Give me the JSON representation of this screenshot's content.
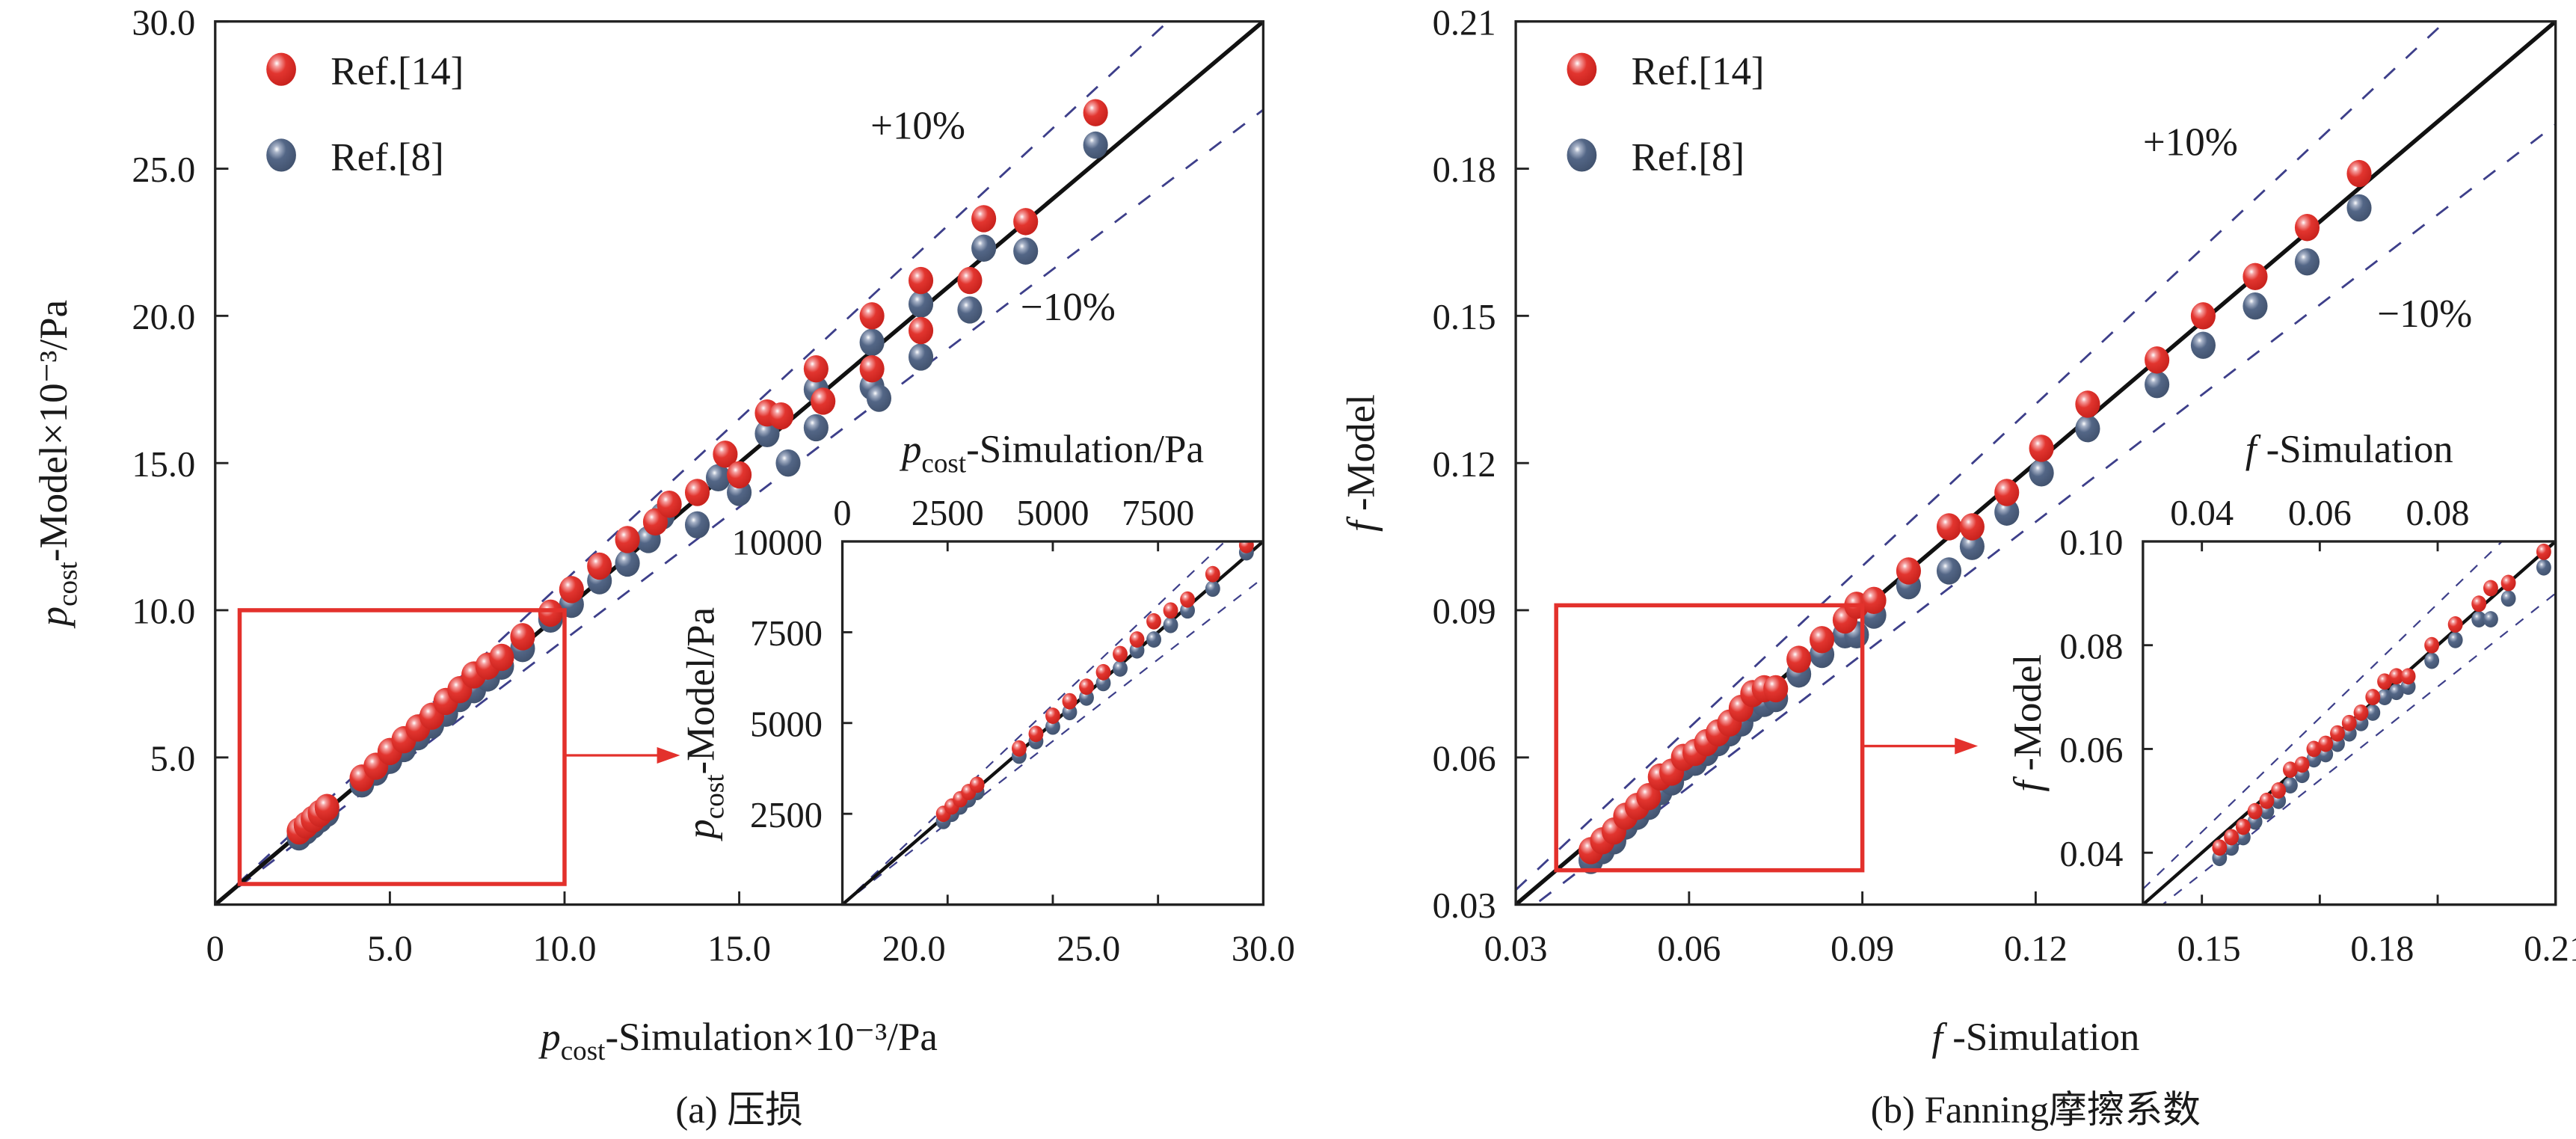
{
  "colors": {
    "ref14": "#d9302b",
    "ref8": "#4e6285",
    "diagonal": "#111111",
    "band": "#3d3f8a",
    "zoom_box": "#e3312c"
  },
  "chart_data": [
    {
      "type": "scatter",
      "caption": "(a) 压损",
      "xlabel": {
        "main": "p",
        "sub": "cost",
        "rest": "-Simulation×10⁻³/Pa"
      },
      "ylabel": {
        "main": "p",
        "sub": "cost",
        "rest": "-Model×10⁻³/Pa"
      },
      "xlim": [
        0,
        30
      ],
      "ylim": [
        0,
        30
      ],
      "xticks": [
        "0",
        "5.0",
        "10.0",
        "15.0",
        "20.0",
        "25.0",
        "30.0"
      ],
      "xtick_values": [
        0,
        5,
        10,
        15,
        20,
        25,
        30
      ],
      "yticks": [
        "5.0",
        "10.0",
        "15.0",
        "20.0",
        "25.0",
        "30.0"
      ],
      "ytick_values": [
        5,
        10,
        15,
        20,
        25,
        30
      ],
      "band_labels": {
        "plus": "+10%",
        "minus": "−10%"
      },
      "zoom_region": {
        "x": [
          0.7,
          10
        ],
        "y": [
          0.7,
          10
        ]
      },
      "series": [
        {
          "name": "Ref.[14]",
          "points": [
            [
              2.4,
              2.5
            ],
            [
              2.6,
              2.7
            ],
            [
              2.8,
              2.9
            ],
            [
              3.0,
              3.1
            ],
            [
              3.2,
              3.3
            ],
            [
              4.2,
              4.3
            ],
            [
              4.6,
              4.7
            ],
            [
              5.0,
              5.2
            ],
            [
              5.4,
              5.6
            ],
            [
              5.8,
              6.0
            ],
            [
              6.2,
              6.4
            ],
            [
              6.6,
              6.9
            ],
            [
              7.0,
              7.3
            ],
            [
              7.4,
              7.8
            ],
            [
              7.8,
              8.1
            ],
            [
              8.2,
              8.4
            ],
            [
              8.8,
              9.1
            ],
            [
              9.6,
              9.9
            ],
            [
              10.2,
              10.7
            ],
            [
              11.0,
              11.5
            ],
            [
              11.8,
              12.4
            ],
            [
              12.6,
              13.0
            ],
            [
              13.0,
              13.6
            ],
            [
              13.8,
              14.0
            ],
            [
              14.6,
              15.3
            ],
            [
              15.0,
              14.6
            ],
            [
              15.8,
              16.7
            ],
            [
              16.2,
              16.6
            ],
            [
              17.2,
              18.2
            ],
            [
              17.4,
              17.1
            ],
            [
              18.8,
              20.0
            ],
            [
              18.8,
              18.2
            ],
            [
              20.2,
              21.2
            ],
            [
              20.2,
              19.5
            ],
            [
              21.6,
              21.2
            ],
            [
              22.0,
              23.3
            ],
            [
              23.2,
              23.2
            ],
            [
              25.2,
              26.9
            ]
          ]
        },
        {
          "name": "Ref.[8]",
          "points": [
            [
              2.4,
              2.3
            ],
            [
              2.6,
              2.5
            ],
            [
              2.8,
              2.7
            ],
            [
              3.0,
              2.9
            ],
            [
              3.2,
              3.1
            ],
            [
              4.2,
              4.1
            ],
            [
              4.6,
              4.5
            ],
            [
              5.0,
              4.9
            ],
            [
              5.4,
              5.3
            ],
            [
              5.8,
              5.7
            ],
            [
              6.2,
              6.1
            ],
            [
              6.6,
              6.5
            ],
            [
              7.0,
              7.0
            ],
            [
              7.4,
              7.3
            ],
            [
              7.8,
              7.7
            ],
            [
              8.2,
              8.1
            ],
            [
              8.8,
              8.7
            ],
            [
              9.6,
              9.7
            ],
            [
              10.2,
              10.2
            ],
            [
              11.0,
              11.0
            ],
            [
              11.8,
              11.6
            ],
            [
              12.4,
              12.4
            ],
            [
              12.8,
              13.2
            ],
            [
              13.8,
              12.9
            ],
            [
              14.4,
              14.5
            ],
            [
              15.0,
              14.0
            ],
            [
              15.8,
              16.0
            ],
            [
              16.4,
              15.0
            ],
            [
              17.2,
              17.5
            ],
            [
              17.2,
              16.2
            ],
            [
              18.8,
              19.1
            ],
            [
              18.8,
              17.6
            ],
            [
              19.0,
              17.2
            ],
            [
              20.2,
              20.4
            ],
            [
              20.2,
              18.6
            ],
            [
              21.6,
              20.2
            ],
            [
              22.0,
              22.3
            ],
            [
              23.2,
              22.2
            ],
            [
              25.2,
              25.8
            ]
          ]
        }
      ],
      "inset": {
        "xlabel": {
          "main": "p",
          "sub": "cost",
          "rest": "-Simulation/Pa"
        },
        "ylabel": {
          "main": "p",
          "sub": "cost",
          "rest": "-Model/Pa"
        },
        "xlim": [
          0,
          10000
        ],
        "ylim": [
          0,
          10000
        ],
        "xticks": [
          "0",
          "2500",
          "5000",
          "7500"
        ],
        "xtick_values": [
          0,
          2500,
          5000,
          7500
        ],
        "yticks": [
          "2500",
          "5000",
          "7500",
          "10000"
        ],
        "ytick_values": [
          2500,
          5000,
          7500,
          10000
        ],
        "xaxis_position": "top"
      }
    },
    {
      "type": "scatter",
      "caption": "(b) Fanning摩擦系数",
      "xlabel": {
        "main": "f",
        "sub": "",
        "rest": " -Simulation"
      },
      "ylabel": {
        "main": "f",
        "sub": "",
        "rest": " -Model"
      },
      "xlim": [
        0.03,
        0.21
      ],
      "ylim": [
        0.03,
        0.21
      ],
      "xticks": [
        "0.03",
        "0.06",
        "0.09",
        "0.12",
        "0.15",
        "0.18",
        "0.21"
      ],
      "xtick_values": [
        0.03,
        0.06,
        0.09,
        0.12,
        0.15,
        0.18,
        0.21
      ],
      "yticks": [
        "0.03",
        "0.06",
        "0.09",
        "0.12",
        "0.15",
        "0.18",
        "0.21"
      ],
      "ytick_values": [
        0.03,
        0.06,
        0.09,
        0.12,
        0.15,
        0.18,
        0.21
      ],
      "band_labels": {
        "plus": "+10%",
        "minus": "−10%"
      },
      "zoom_region": {
        "x": [
          0.037,
          0.09
        ],
        "y": [
          0.037,
          0.091
        ]
      },
      "series": [
        {
          "name": "Ref.[14]",
          "points": [
            [
              0.043,
              0.041
            ],
            [
              0.045,
              0.043
            ],
            [
              0.047,
              0.045
            ],
            [
              0.049,
              0.048
            ],
            [
              0.051,
              0.05
            ],
            [
              0.053,
              0.052
            ],
            [
              0.055,
              0.056
            ],
            [
              0.057,
              0.057
            ],
            [
              0.059,
              0.06
            ],
            [
              0.061,
              0.061
            ],
            [
              0.063,
              0.063
            ],
            [
              0.065,
              0.065
            ],
            [
              0.067,
              0.067
            ],
            [
              0.069,
              0.07
            ],
            [
              0.071,
              0.073
            ],
            [
              0.073,
              0.074
            ],
            [
              0.075,
              0.074
            ],
            [
              0.079,
              0.08
            ],
            [
              0.083,
              0.084
            ],
            [
              0.087,
              0.088
            ],
            [
              0.089,
              0.091
            ],
            [
              0.092,
              0.092
            ],
            [
              0.098,
              0.098
            ],
            [
              0.105,
              0.107
            ],
            [
              0.109,
              0.107
            ],
            [
              0.115,
              0.114
            ],
            [
              0.121,
              0.123
            ],
            [
              0.129,
              0.132
            ],
            [
              0.141,
              0.141
            ],
            [
              0.149,
              0.15
            ],
            [
              0.158,
              0.158
            ],
            [
              0.167,
              0.168
            ],
            [
              0.176,
              0.179
            ]
          ]
        },
        {
          "name": "Ref.[8]",
          "points": [
            [
              0.043,
              0.039
            ],
            [
              0.045,
              0.041
            ],
            [
              0.047,
              0.043
            ],
            [
              0.049,
              0.046
            ],
            [
              0.051,
              0.048
            ],
            [
              0.053,
              0.05
            ],
            [
              0.055,
              0.053
            ],
            [
              0.057,
              0.055
            ],
            [
              0.059,
              0.058
            ],
            [
              0.061,
              0.059
            ],
            [
              0.063,
              0.061
            ],
            [
              0.065,
              0.063
            ],
            [
              0.067,
              0.065
            ],
            [
              0.069,
              0.067
            ],
            [
              0.071,
              0.07
            ],
            [
              0.073,
              0.071
            ],
            [
              0.075,
              0.072
            ],
            [
              0.079,
              0.077
            ],
            [
              0.083,
              0.081
            ],
            [
              0.087,
              0.085
            ],
            [
              0.089,
              0.085
            ],
            [
              0.092,
              0.089
            ],
            [
              0.098,
              0.095
            ],
            [
              0.105,
              0.098
            ],
            [
              0.109,
              0.103
            ],
            [
              0.115,
              0.11
            ],
            [
              0.121,
              0.118
            ],
            [
              0.129,
              0.127
            ],
            [
              0.141,
              0.136
            ],
            [
              0.149,
              0.144
            ],
            [
              0.158,
              0.152
            ],
            [
              0.167,
              0.161
            ],
            [
              0.176,
              0.172
            ]
          ]
        }
      ],
      "inset": {
        "xlabel": {
          "main": "f",
          "sub": "",
          "rest": " -Simulation"
        },
        "ylabel": {
          "main": "f",
          "sub": "",
          "rest": " -Model"
        },
        "xlim": [
          0.03,
          0.1
        ],
        "ylim": [
          0.03,
          0.1
        ],
        "xticks": [
          "0.04",
          "0.06",
          "0.08"
        ],
        "xtick_values": [
          0.04,
          0.06,
          0.08
        ],
        "yticks": [
          "0.04",
          "0.06",
          "0.08",
          "0.10"
        ],
        "ytick_values": [
          0.04,
          0.06,
          0.08,
          0.1
        ],
        "xaxis_position": "top"
      }
    }
  ]
}
